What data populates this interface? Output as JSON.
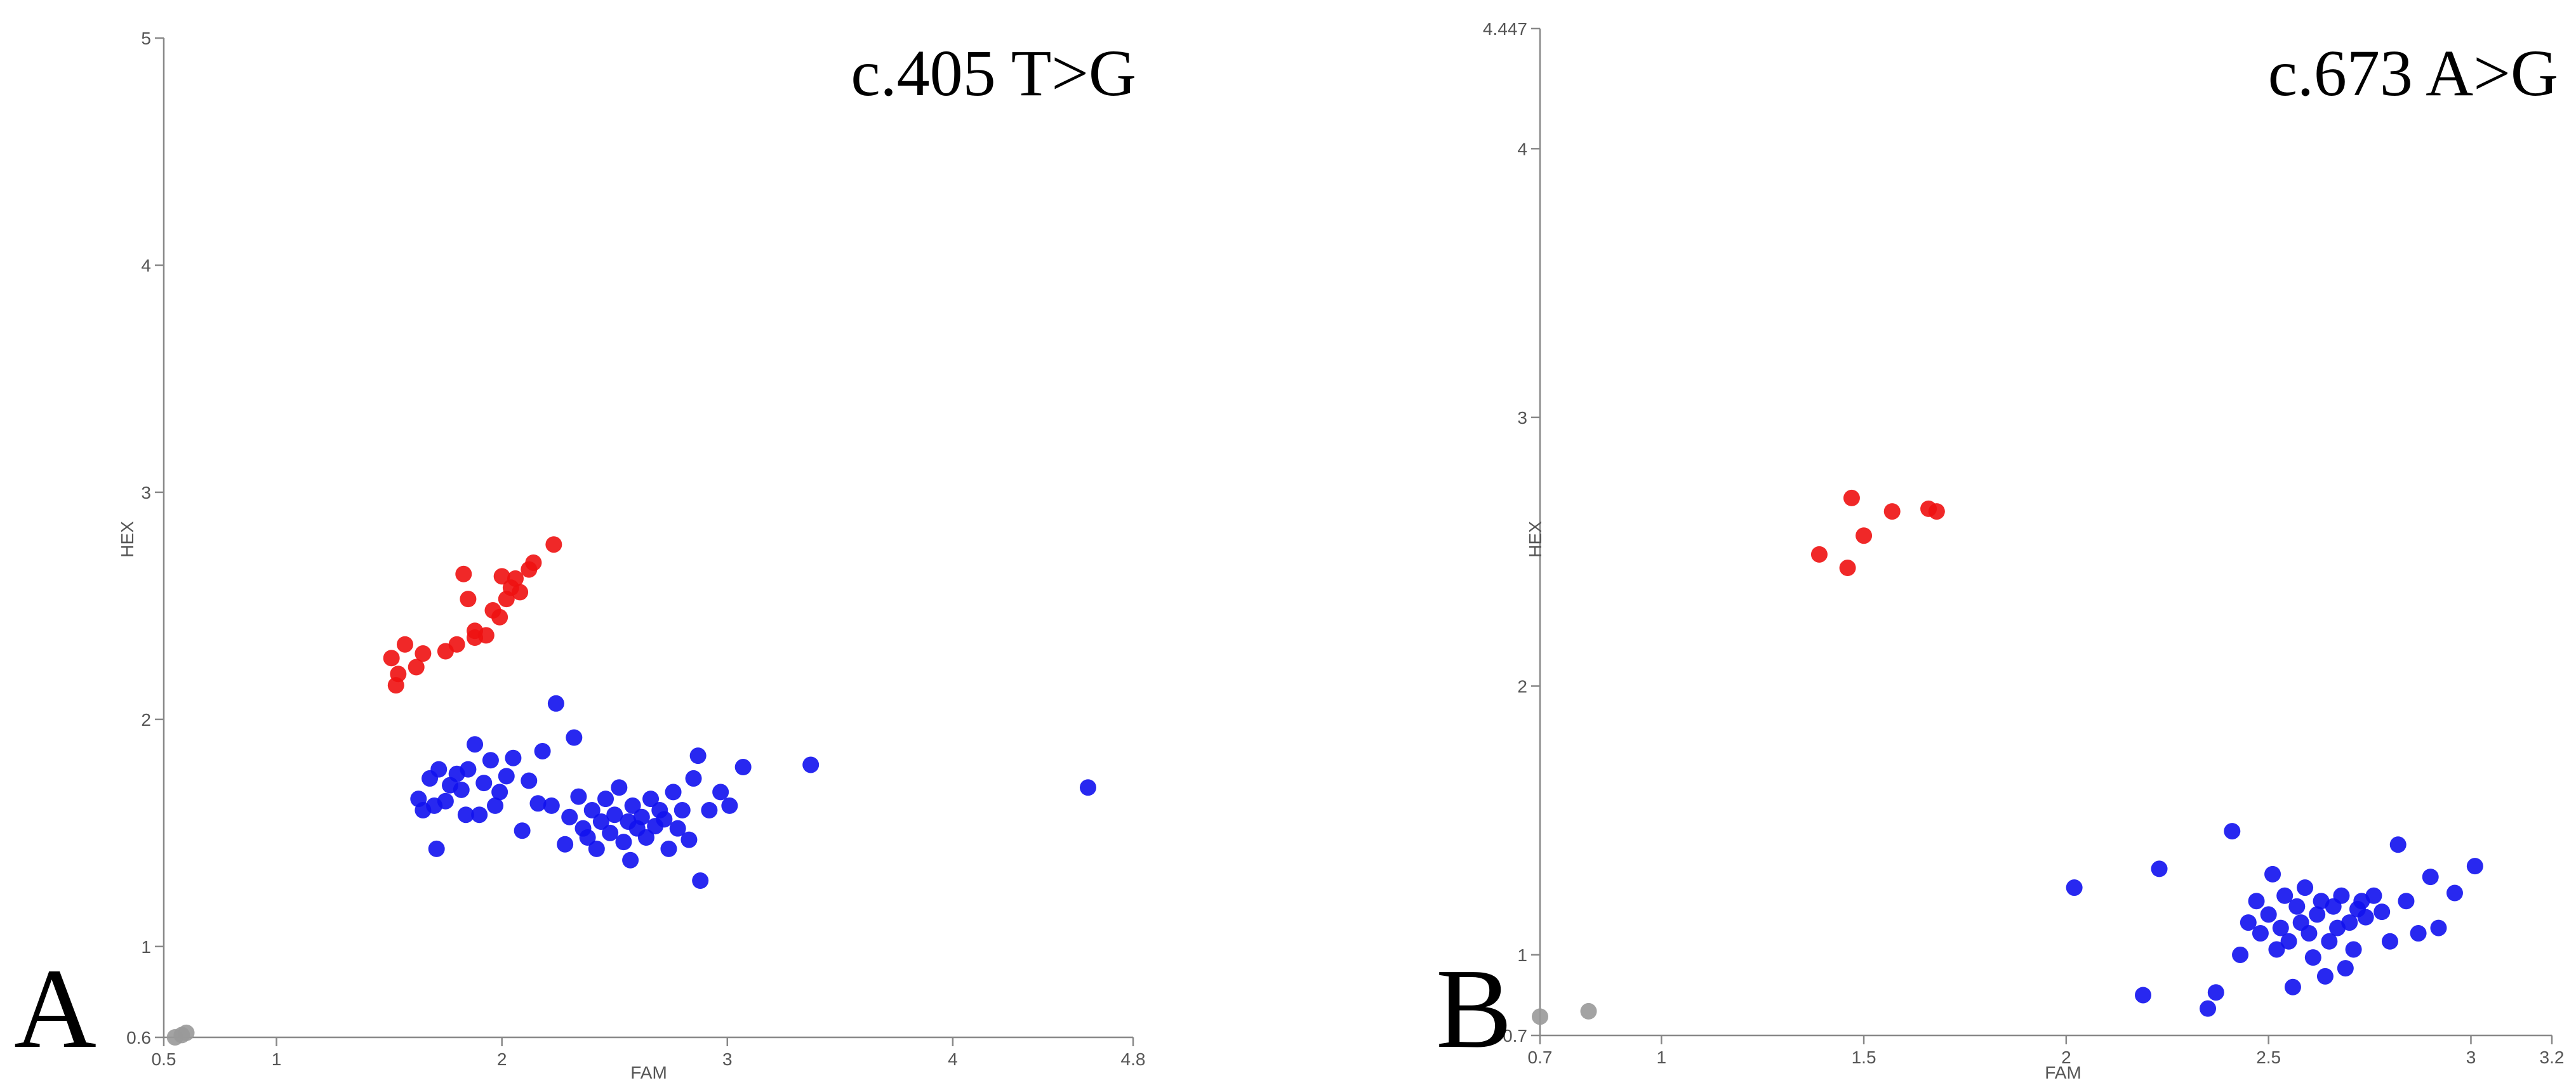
{
  "chart_data": [
    {
      "type": "scatter",
      "title": "c.405 T>G",
      "panel_label": "A",
      "xlabel": "FAM",
      "ylabel": "HEX",
      "xlim": [
        0.5,
        4.8
      ],
      "ylim": [
        0.6,
        5
      ],
      "xticks": [
        "0.5",
        "1",
        "2",
        "3",
        "4",
        "4.8"
      ],
      "yticks": [
        "0.6",
        "1",
        "2",
        "3",
        "4",
        "5"
      ],
      "colors": {
        "red": "#ee1111",
        "blue": "#1111ee",
        "grey": "#999999"
      },
      "series": [
        {
          "color": "red",
          "points": [
            [
              1.51,
              2.27
            ],
            [
              1.53,
              2.15
            ],
            [
              1.54,
              2.2
            ],
            [
              1.57,
              2.33
            ],
            [
              1.62,
              2.23
            ],
            [
              1.65,
              2.29
            ],
            [
              1.75,
              2.3
            ],
            [
              1.8,
              2.33
            ],
            [
              1.83,
              2.64
            ],
            [
              1.85,
              2.53
            ],
            [
              1.88,
              2.39
            ],
            [
              1.88,
              2.36
            ],
            [
              1.93,
              2.37
            ],
            [
              1.96,
              2.48
            ],
            [
              1.99,
              2.45
            ],
            [
              2.0,
              2.63
            ],
            [
              2.02,
              2.53
            ],
            [
              2.04,
              2.58
            ],
            [
              2.06,
              2.62
            ],
            [
              2.08,
              2.56
            ],
            [
              2.12,
              2.66
            ],
            [
              2.14,
              2.69
            ],
            [
              2.23,
              2.77
            ]
          ]
        },
        {
          "color": "blue",
          "points": [
            [
              1.63,
              1.65
            ],
            [
              1.65,
              1.6
            ],
            [
              1.68,
              1.74
            ],
            [
              1.7,
              1.62
            ],
            [
              1.72,
              1.78
            ],
            [
              1.71,
              1.43
            ],
            [
              1.75,
              1.64
            ],
            [
              1.77,
              1.71
            ],
            [
              1.8,
              1.76
            ],
            [
              1.82,
              1.69
            ],
            [
              1.84,
              1.58
            ],
            [
              1.85,
              1.78
            ],
            [
              1.88,
              1.89
            ],
            [
              1.9,
              1.58
            ],
            [
              1.92,
              1.72
            ],
            [
              1.95,
              1.82
            ],
            [
              1.97,
              1.62
            ],
            [
              1.99,
              1.68
            ],
            [
              2.02,
              1.75
            ],
            [
              2.05,
              1.83
            ],
            [
              2.09,
              1.51
            ],
            [
              2.12,
              1.73
            ],
            [
              2.16,
              1.63
            ],
            [
              2.18,
              1.86
            ],
            [
              2.22,
              1.62
            ],
            [
              2.24,
              2.07
            ],
            [
              2.28,
              1.45
            ],
            [
              2.3,
              1.57
            ],
            [
              2.32,
              1.92
            ],
            [
              2.34,
              1.66
            ],
            [
              2.36,
              1.52
            ],
            [
              2.38,
              1.48
            ],
            [
              2.4,
              1.6
            ],
            [
              2.42,
              1.43
            ],
            [
              2.44,
              1.55
            ],
            [
              2.46,
              1.65
            ],
            [
              2.48,
              1.5
            ],
            [
              2.5,
              1.58
            ],
            [
              2.52,
              1.7
            ],
            [
              2.54,
              1.46
            ],
            [
              2.56,
              1.55
            ],
            [
              2.57,
              1.38
            ],
            [
              2.58,
              1.62
            ],
            [
              2.6,
              1.52
            ],
            [
              2.62,
              1.57
            ],
            [
              2.64,
              1.48
            ],
            [
              2.66,
              1.65
            ],
            [
              2.68,
              1.53
            ],
            [
              2.7,
              1.6
            ],
            [
              2.72,
              1.56
            ],
            [
              2.74,
              1.43
            ],
            [
              2.76,
              1.68
            ],
            [
              2.78,
              1.52
            ],
            [
              2.8,
              1.6
            ],
            [
              2.83,
              1.47
            ],
            [
              2.85,
              1.74
            ],
            [
              2.87,
              1.84
            ],
            [
              2.88,
              1.29
            ],
            [
              2.92,
              1.6
            ],
            [
              2.97,
              1.68
            ],
            [
              3.01,
              1.62
            ],
            [
              3.07,
              1.79
            ],
            [
              3.37,
              1.8
            ],
            [
              4.6,
              1.7
            ]
          ]
        },
        {
          "color": "grey",
          "points": [
            [
              0.55,
              0.6
            ],
            [
              0.58,
              0.61
            ],
            [
              0.6,
              0.62
            ]
          ]
        }
      ]
    },
    {
      "type": "scatter",
      "title": "c.673 A>G",
      "panel_label": "B",
      "xlabel": "FAM",
      "ylabel": "HEX",
      "xlim": [
        0.7,
        3.2
      ],
      "ylim": [
        0.7,
        4.447
      ],
      "xticks": [
        "0.7",
        "1",
        "1.5",
        "2",
        "2.5",
        "3",
        "3.2"
      ],
      "yticks": [
        "0.7",
        "1",
        "2",
        "3",
        "4",
        "4.447"
      ],
      "colors": {
        "red": "#ee1111",
        "blue": "#1111ee",
        "grey": "#999999"
      },
      "series": [
        {
          "color": "red",
          "points": [
            [
              1.39,
              2.49
            ],
            [
              1.46,
              2.44
            ],
            [
              1.47,
              2.7
            ],
            [
              1.5,
              2.56
            ],
            [
              1.57,
              2.65
            ],
            [
              1.66,
              2.66
            ],
            [
              1.68,
              2.65
            ]
          ]
        },
        {
          "color": "blue",
          "points": [
            [
              2.02,
              1.25
            ],
            [
              2.19,
              0.85
            ],
            [
              2.23,
              1.32
            ],
            [
              2.35,
              0.8
            ],
            [
              2.37,
              0.86
            ],
            [
              2.41,
              1.46
            ],
            [
              2.43,
              1.0
            ],
            [
              2.45,
              1.12
            ],
            [
              2.47,
              1.2
            ],
            [
              2.48,
              1.08
            ],
            [
              2.5,
              1.15
            ],
            [
              2.51,
              1.3
            ],
            [
              2.52,
              1.02
            ],
            [
              2.53,
              1.1
            ],
            [
              2.54,
              1.22
            ],
            [
              2.55,
              1.05
            ],
            [
              2.56,
              0.88
            ],
            [
              2.57,
              1.18
            ],
            [
              2.58,
              1.12
            ],
            [
              2.59,
              1.25
            ],
            [
              2.6,
              1.08
            ],
            [
              2.61,
              0.99
            ],
            [
              2.62,
              1.15
            ],
            [
              2.63,
              1.2
            ],
            [
              2.64,
              0.92
            ],
            [
              2.65,
              1.05
            ],
            [
              2.66,
              1.18
            ],
            [
              2.67,
              1.1
            ],
            [
              2.68,
              1.22
            ],
            [
              2.69,
              0.95
            ],
            [
              2.7,
              1.12
            ],
            [
              2.71,
              1.02
            ],
            [
              2.72,
              1.17
            ],
            [
              2.73,
              1.2
            ],
            [
              2.74,
              1.14
            ],
            [
              2.76,
              1.22
            ],
            [
              2.78,
              1.16
            ],
            [
              2.8,
              1.05
            ],
            [
              2.82,
              1.41
            ],
            [
              2.84,
              1.2
            ],
            [
              2.87,
              1.08
            ],
            [
              2.9,
              1.29
            ],
            [
              2.92,
              1.1
            ],
            [
              2.96,
              1.23
            ],
            [
              3.01,
              1.33
            ]
          ]
        },
        {
          "color": "grey",
          "points": [
            [
              0.7,
              0.77
            ],
            [
              0.82,
              0.79
            ]
          ]
        }
      ]
    }
  ]
}
